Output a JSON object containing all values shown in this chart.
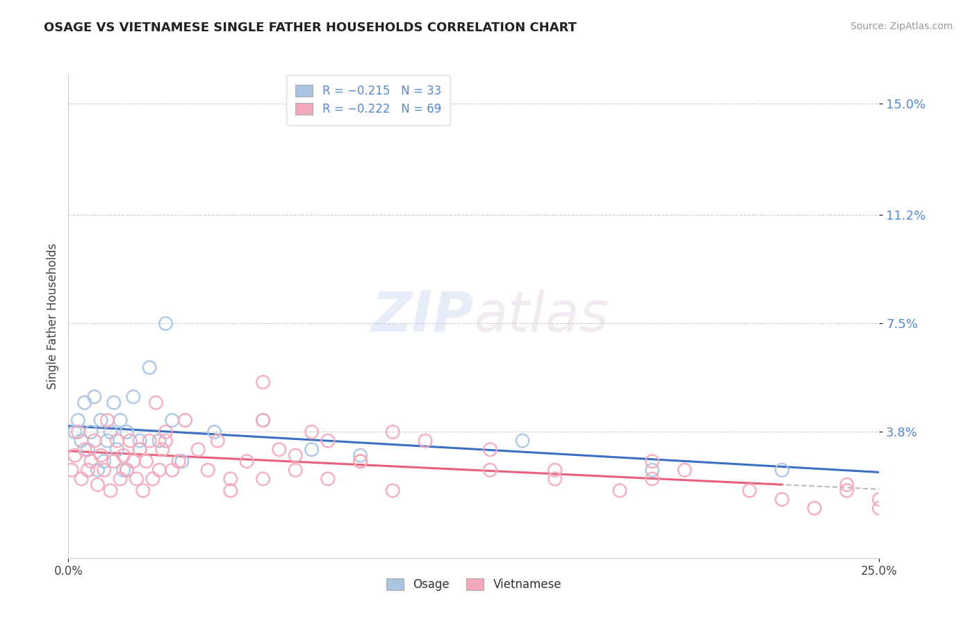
{
  "title": "OSAGE VS VIETNAMESE SINGLE FATHER HOUSEHOLDS CORRELATION CHART",
  "source_text": "Source: ZipAtlas.com",
  "ylabel": "Single Father Households",
  "xlim": [
    0.0,
    0.25
  ],
  "ylim": [
    -0.005,
    0.16
  ],
  "ytick_labels": [
    "3.8%",
    "7.5%",
    "11.2%",
    "15.0%"
  ],
  "ytick_positions": [
    0.038,
    0.075,
    0.112,
    0.15
  ],
  "osage_color": "#aac4e2",
  "vietnamese_color": "#f4a8bc",
  "osage_line_color": "#3a6fc4",
  "vietnamese_line_color": "#e8607a",
  "dash_color": "#bbbbbb",
  "legend_R1": "R = −0.215",
  "legend_N1": "N = 33",
  "legend_R2": "R = −0.222",
  "legend_N2": "N = 69",
  "legend_label1": "Osage",
  "legend_label2": "Vietnamese",
  "watermark_zip": "ZIP",
  "watermark_atlas": "atlas",
  "tick_color": "#5588cc",
  "osage_x": [
    0.002,
    0.003,
    0.004,
    0.005,
    0.006,
    0.007,
    0.008,
    0.009,
    0.01,
    0.011,
    0.012,
    0.013,
    0.014,
    0.015,
    0.016,
    0.017,
    0.018,
    0.02,
    0.022,
    0.025,
    0.028,
    0.03,
    0.032,
    0.018,
    0.022,
    0.035,
    0.045,
    0.06,
    0.075,
    0.09,
    0.14,
    0.18,
    0.22
  ],
  "osage_y": [
    0.038,
    0.042,
    0.035,
    0.048,
    0.032,
    0.038,
    0.05,
    0.025,
    0.042,
    0.028,
    0.035,
    0.038,
    0.048,
    0.032,
    0.042,
    0.025,
    0.038,
    0.05,
    0.035,
    0.06,
    0.035,
    0.075,
    0.042,
    0.025,
    0.032,
    0.028,
    0.038,
    0.042,
    0.032,
    0.03,
    0.035,
    0.025,
    0.025
  ],
  "vietnamese_x": [
    0.001,
    0.002,
    0.003,
    0.004,
    0.005,
    0.006,
    0.007,
    0.008,
    0.009,
    0.01,
    0.011,
    0.012,
    0.013,
    0.014,
    0.015,
    0.016,
    0.017,
    0.018,
    0.019,
    0.02,
    0.021,
    0.022,
    0.023,
    0.024,
    0.025,
    0.026,
    0.027,
    0.028,
    0.029,
    0.03,
    0.032,
    0.034,
    0.036,
    0.04,
    0.043,
    0.046,
    0.05,
    0.055,
    0.06,
    0.065,
    0.07,
    0.075,
    0.08,
    0.09,
    0.1,
    0.11,
    0.13,
    0.15,
    0.17,
    0.19,
    0.21,
    0.23,
    0.24,
    0.25,
    0.06,
    0.08,
    0.1,
    0.15,
    0.18,
    0.22,
    0.25,
    0.06,
    0.09,
    0.13,
    0.18,
    0.24,
    0.03,
    0.05,
    0.07
  ],
  "vietnamese_y": [
    0.025,
    0.03,
    0.038,
    0.022,
    0.032,
    0.025,
    0.028,
    0.035,
    0.02,
    0.03,
    0.025,
    0.042,
    0.018,
    0.028,
    0.035,
    0.022,
    0.03,
    0.025,
    0.035,
    0.028,
    0.022,
    0.032,
    0.018,
    0.028,
    0.035,
    0.022,
    0.048,
    0.025,
    0.032,
    0.038,
    0.025,
    0.028,
    0.042,
    0.032,
    0.025,
    0.035,
    0.018,
    0.028,
    0.022,
    0.032,
    0.025,
    0.038,
    0.022,
    0.028,
    0.018,
    0.035,
    0.025,
    0.022,
    0.018,
    0.025,
    0.018,
    0.012,
    0.02,
    0.015,
    0.042,
    0.035,
    0.038,
    0.025,
    0.028,
    0.015,
    0.012,
    0.055,
    0.028,
    0.032,
    0.022,
    0.018,
    0.035,
    0.022,
    0.03
  ]
}
